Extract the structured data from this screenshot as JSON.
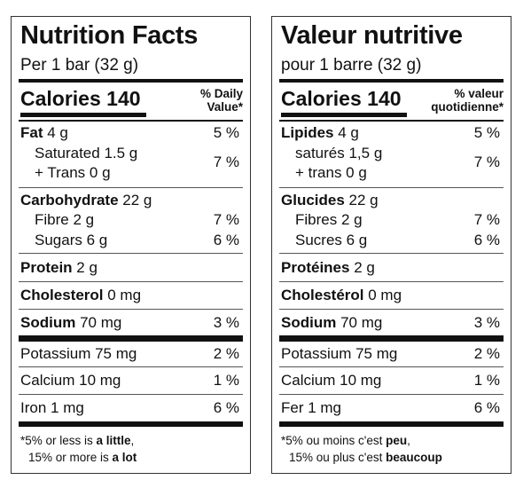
{
  "en": {
    "title": "Nutrition Facts",
    "serving": "Per 1 bar (32 g)",
    "calories_label": "Calories 140",
    "dv_line1": "% Daily",
    "dv_line2": "Value*",
    "fat_name": "Fat",
    "fat_amount": " 4 g",
    "fat_pct": "5 %",
    "saturated": "Saturated 1.5 g",
    "trans": "+ Trans 0 g",
    "sat_trans_pct": "7 %",
    "carb_name": "Carbohydrate",
    "carb_amount": " 22 g",
    "fibre": "Fibre 2 g",
    "fibre_pct": "7 %",
    "sugars": "Sugars 6 g",
    "sugars_pct": "6 %",
    "protein_name": "Protein",
    "protein_amount": " 2 g",
    "chol_name": "Cholesterol",
    "chol_amount": " 0 mg",
    "sodium_name": "Sodium",
    "sodium_amount": " 70 mg",
    "sodium_pct": "3 %",
    "potassium": "Potassium 75 mg",
    "potassium_pct": "2 %",
    "calcium": "Calcium 10 mg",
    "calcium_pct": "1 %",
    "iron": "Iron 1 mg",
    "iron_pct": "6 %",
    "foot1_a": "*5% or less is ",
    "foot1_b": "a little",
    "foot1_c": ",",
    "foot2_a": "15% or more is ",
    "foot2_b": "a lot"
  },
  "fr": {
    "title": "Valeur nutritive",
    "serving": "pour 1 barre (32 g)",
    "calories_label": "Calories 140",
    "dv_line1": "% valeur",
    "dv_line2": "quotidienne*",
    "fat_name": "Lipides",
    "fat_amount": " 4 g",
    "fat_pct": "5 %",
    "saturated": "saturés 1,5 g",
    "trans": "+ trans 0 g",
    "sat_trans_pct": "7 %",
    "carb_name": "Glucides",
    "carb_amount": " 22 g",
    "fibre": "Fibres 2 g",
    "fibre_pct": "7 %",
    "sugars": "Sucres 6 g",
    "sugars_pct": "6 %",
    "protein_name": "Protéines",
    "protein_amount": " 2 g",
    "chol_name": "Cholestérol",
    "chol_amount": " 0 mg",
    "sodium_name": "Sodium",
    "sodium_amount": " 70 mg",
    "sodium_pct": "3 %",
    "potassium": "Potassium 75 mg",
    "potassium_pct": "2 %",
    "calcium": "Calcium 10 mg",
    "calcium_pct": "1 %",
    "iron": "Fer 1 mg",
    "iron_pct": "6 %",
    "foot1_a": "*5% ou moins c'est ",
    "foot1_b": "peu",
    "foot1_c": ",",
    "foot2_a": "15% ou plus c'est ",
    "foot2_b": "beaucoup"
  }
}
